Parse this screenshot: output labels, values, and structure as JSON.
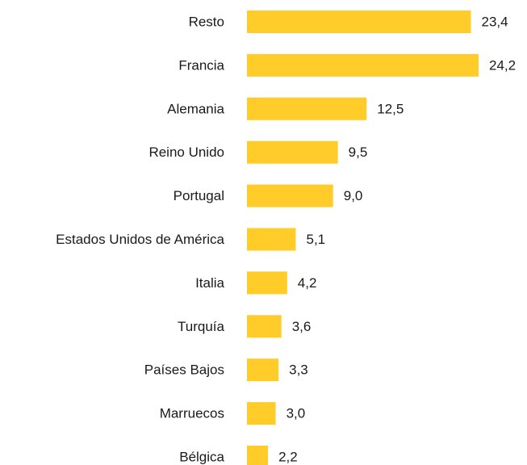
{
  "chart_data": {
    "type": "bar",
    "orientation": "horizontal",
    "categories": [
      "Resto",
      "Francia",
      "Alemania",
      "Reino Unido",
      "Portugal",
      "Estados Unidos de América",
      "Italia",
      "Turquía",
      "Países Bajos",
      "Marruecos",
      "Bélgica"
    ],
    "values": [
      23.4,
      24.2,
      12.5,
      9.5,
      9.0,
      5.1,
      4.2,
      3.6,
      3.3,
      3.0,
      2.2
    ],
    "value_labels": [
      "23,4",
      "24,2",
      "12,5",
      "9,5",
      "9,0",
      "5,1",
      "4,2",
      "3,6",
      "3,3",
      "3,0",
      "2,2"
    ],
    "color": "#ffcc29"
  }
}
